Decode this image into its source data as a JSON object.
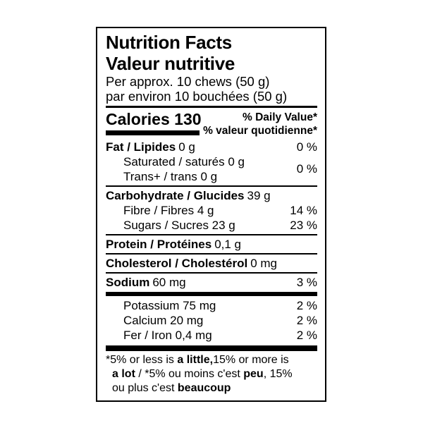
{
  "nf": {
    "title_en": "Nutrition Facts",
    "title_fr": "Valeur nutritive",
    "serving_en": "Per approx. 10 chews (50 g)",
    "serving_fr": "par environ 10 bouchées (50 g)",
    "calories": "Calories 130",
    "dv_en": "% Daily Value*",
    "dv_fr": "% valeur quotidienne*",
    "fat": {
      "name": "Fat / Lipides",
      "amount": "0 g",
      "dv": "0 %"
    },
    "saturated": "Saturated / saturés 0 g",
    "trans": "Trans+ / trans 0 g",
    "sat_trans_dv": "0 %",
    "carbohydrate": {
      "name": "Carbohydrate / Glucides",
      "amount": "39 g"
    },
    "fibre": {
      "text": "Fibre / Fibres 4 g",
      "dv": "14 %"
    },
    "sugars": {
      "text": "Sugars / Sucres 23 g",
      "dv": "23 %"
    },
    "protein": {
      "name": "Protein / Protéines",
      "amount": "0,1 g"
    },
    "cholesterol": {
      "name": "Cholesterol / Cholestérol",
      "amount": "0 mg"
    },
    "sodium": {
      "name": "Sodium",
      "amount": "60 mg",
      "dv": "3 %"
    },
    "potassium": {
      "text": "Potassium 75 mg",
      "dv": "2 %"
    },
    "calcium": {
      "text": "Calcium 20 mg",
      "dv": "2 %"
    },
    "iron": {
      "text": "Fer / Iron 0,4 mg",
      "dv": "2 %"
    },
    "footnote": {
      "line1_pre": "*5% or less is ",
      "line1_bold": "a little,",
      "line1_post": "15% or more is",
      "line2_bold1": "a lot",
      "line2_mid": " / *5% ou moins c'est ",
      "line2_bold2": "peu",
      "line2_post": ", 15%",
      "line3_pre": "ou plus c'est ",
      "line3_bold": "beaucoup"
    },
    "colors": {
      "text": "#000000",
      "background": "#ffffff"
    }
  }
}
